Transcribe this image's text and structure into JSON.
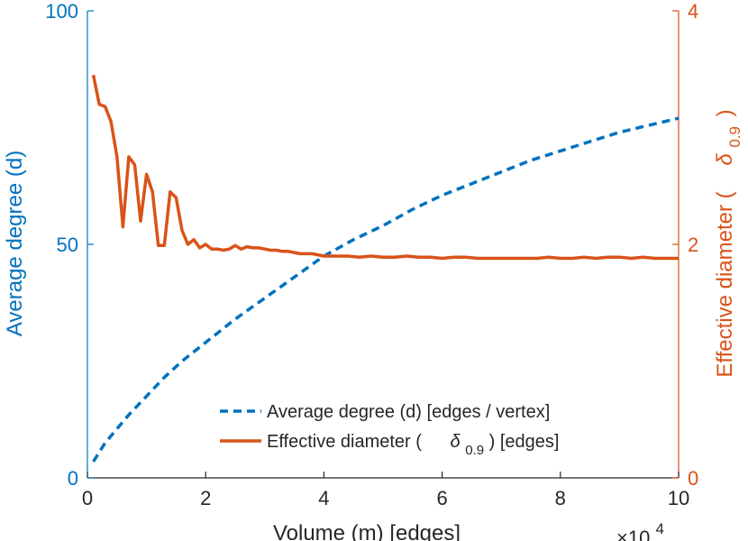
{
  "chart_data": {
    "type": "line",
    "title": "",
    "xlabel": "Volume (m) [edges]",
    "x_multiplier": "×10",
    "x_multiplier_exponent": "4",
    "xlim": [
      0,
      100000
    ],
    "x_ticks": [
      {
        "value": 0,
        "label": "0"
      },
      {
        "value": 20000,
        "label": "2"
      },
      {
        "value": 40000,
        "label": "4"
      },
      {
        "value": 60000,
        "label": "6"
      },
      {
        "value": 80000,
        "label": "8"
      },
      {
        "value": 100000,
        "label": "10"
      }
    ],
    "left_axis": {
      "label": "Average degree (d)",
      "lim": [
        0,
        100
      ],
      "ticks": [
        {
          "value": 0,
          "label": "0"
        },
        {
          "value": 50,
          "label": "50"
        },
        {
          "value": 100,
          "label": "100"
        }
      ]
    },
    "right_axis": {
      "label_main": "Effective diameter (",
      "label_sym": "δ",
      "label_sub": "0.9",
      "label_close": ")",
      "lim": [
        0,
        4
      ],
      "ticks": [
        {
          "value": 0,
          "label": "0"
        },
        {
          "value": 2,
          "label": "2"
        },
        {
          "value": 4,
          "label": "4"
        }
      ]
    },
    "legend_position": "lower-right",
    "series": [
      {
        "name": "Average degree (d) [edges / vertex]",
        "axis": "left",
        "style": "dashed",
        "color": "#0072BD",
        "x": [
          1000,
          3000,
          5000,
          7000,
          10000,
          13000,
          16000,
          20000,
          25000,
          30000,
          35000,
          40000,
          45000,
          50000,
          55000,
          60000,
          65000,
          70000,
          75000,
          80000,
          85000,
          90000,
          95000,
          100000
        ],
        "y": [
          3.5,
          7.5,
          10.5,
          13.5,
          17.5,
          21.5,
          25,
          29,
          34,
          38.5,
          43,
          47.5,
          51,
          54,
          57.5,
          60.5,
          63,
          65.5,
          68,
          70,
          72,
          74,
          75.5,
          77
        ]
      },
      {
        "name_main": "Effective diameter (",
        "name_sym": "δ",
        "name_sub": "0.9",
        "name_close": ") [edges]",
        "axis": "right",
        "style": "solid",
        "color": "#D95319",
        "x": [
          1000,
          2000,
          3000,
          4000,
          5000,
          6000,
          7000,
          8000,
          9000,
          10000,
          11000,
          12000,
          13000,
          14000,
          15000,
          16000,
          17000,
          18000,
          19000,
          20000,
          21000,
          22000,
          23000,
          24000,
          25000,
          26000,
          27000,
          28000,
          29000,
          30000,
          31000,
          32000,
          33000,
          34000,
          35000,
          36000,
          37000,
          38000,
          40000,
          42000,
          44000,
          46000,
          48000,
          50000,
          52000,
          54000,
          56000,
          58000,
          60000,
          62000,
          64000,
          66000,
          68000,
          70000,
          72000,
          74000,
          76000,
          78000,
          80000,
          82000,
          84000,
          86000,
          88000,
          90000,
          92000,
          94000,
          96000,
          98000,
          100000
        ],
        "y": [
          3.45,
          3.2,
          3.18,
          3.05,
          2.75,
          2.15,
          2.75,
          2.68,
          2.2,
          2.6,
          2.45,
          1.99,
          1.99,
          2.45,
          2.4,
          2.12,
          2.0,
          2.04,
          1.97,
          2.0,
          1.96,
          1.96,
          1.95,
          1.96,
          1.99,
          1.96,
          1.98,
          1.97,
          1.97,
          1.96,
          1.95,
          1.95,
          1.94,
          1.94,
          1.93,
          1.92,
          1.92,
          1.92,
          1.9,
          1.9,
          1.9,
          1.89,
          1.9,
          1.89,
          1.89,
          1.9,
          1.89,
          1.89,
          1.88,
          1.89,
          1.89,
          1.88,
          1.88,
          1.88,
          1.88,
          1.88,
          1.88,
          1.89,
          1.88,
          1.88,
          1.89,
          1.88,
          1.89,
          1.89,
          1.88,
          1.89,
          1.88,
          1.88,
          1.88
        ]
      }
    ],
    "colors": {
      "left_axis": "#0072BD",
      "right_axis": "#D95319",
      "x_axis": "#262626"
    }
  }
}
